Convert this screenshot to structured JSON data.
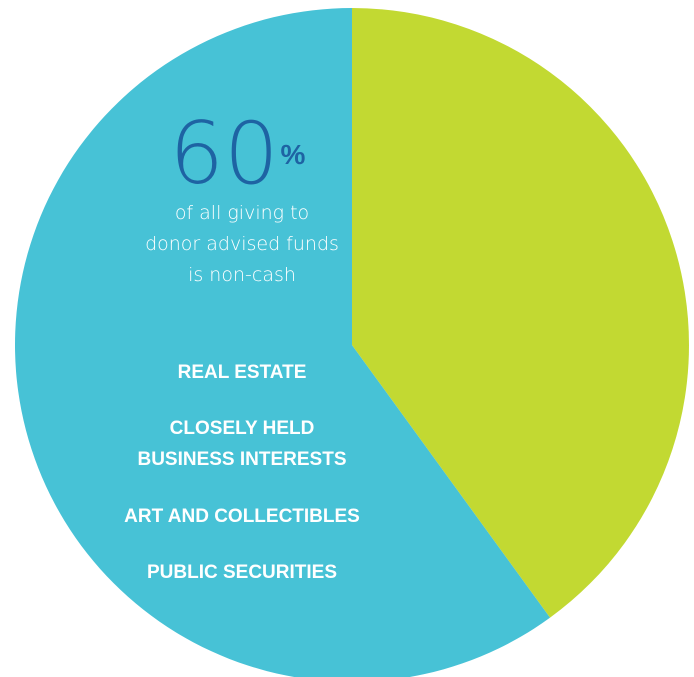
{
  "chart_data": {
    "type": "pie",
    "slices": [
      {
        "value": 60,
        "color": "#47c2d6"
      },
      {
        "value": 40,
        "color": "#c2d932"
      }
    ],
    "start_angle_deg": 0,
    "direction": "counterclockwise",
    "highlight": {
      "number": "60",
      "unit": "%",
      "caption_lines": [
        "of all giving to",
        "donor advised funds",
        "is non-cash"
      ]
    },
    "categories": [
      [
        "REAL ESTATE"
      ],
      [
        "CLOSELY HELD",
        "BUSINESS INTERESTS"
      ],
      [
        "ART AND COLLECTIBLES"
      ],
      [
        "PUBLIC SECURITIES"
      ]
    ],
    "colors": {
      "highlight_number": "#1e63a3",
      "caption": "#ffffff",
      "category_label": "#ffffff"
    }
  }
}
